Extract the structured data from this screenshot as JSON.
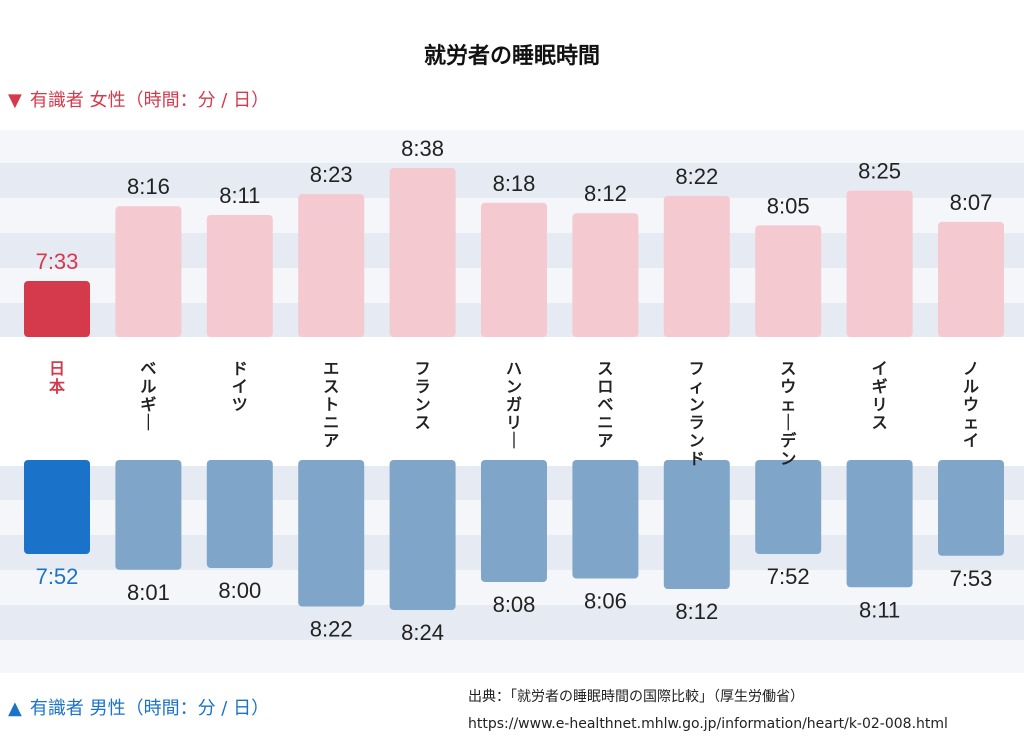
{
  "chart_data": {
    "type": "bar",
    "title": "就労者の睡眠時間",
    "female_label": "有識者 女性（時間：分 / 日）",
    "male_label": "有識者 男性（時間：分 / 日）",
    "categories": [
      "日本",
      "ベルギー",
      "ドイツ",
      "エストニア",
      "フランス",
      "ハンガリー",
      "スロベニア",
      "フィンランド",
      "スウェーデン",
      "イギリス",
      "ノルウェイ"
    ],
    "series": [
      {
        "name": "女性",
        "values": [
          "7:33",
          "8:16",
          "8:11",
          "8:23",
          "8:38",
          "8:18",
          "8:12",
          "8:22",
          "8:05",
          "8:25",
          "8:07"
        ]
      },
      {
        "name": "男性",
        "values": [
          "7:52",
          "8:01",
          "8:00",
          "8:22",
          "8:24",
          "8:08",
          "8:06",
          "8:12",
          "7:52",
          "8:11",
          "7:53"
        ]
      }
    ],
    "highlight_category": "日本",
    "colors": {
      "female": "#f4c9cf",
      "female_highlight": "#d43a4c",
      "male": "#7fa6c9",
      "male_highlight": "#1a73c8",
      "band": "#e6eaf2"
    }
  },
  "source": "出典：「就労者の睡眠時間の国際比較」（厚生労働省）",
  "url": "https://www.e-healthnet.mhlw.go.jp/information/heart/k-02-008.html"
}
